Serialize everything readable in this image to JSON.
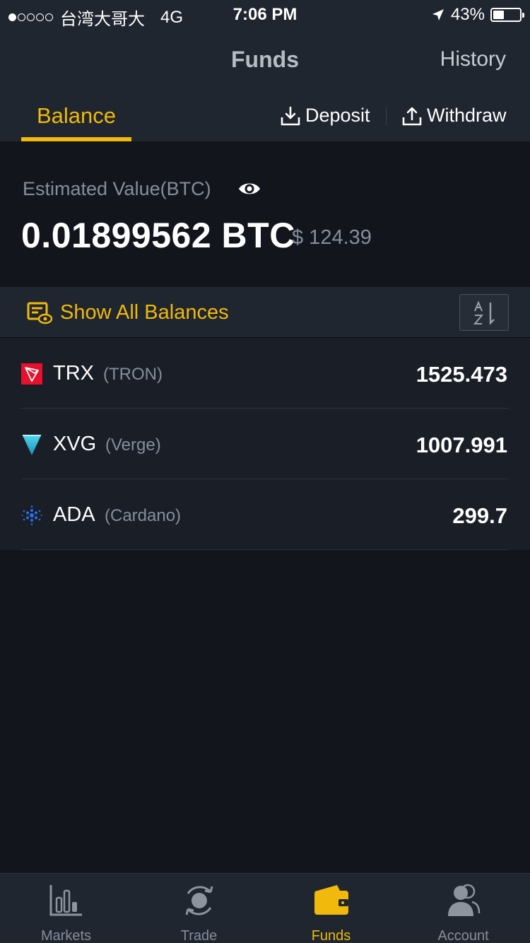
{
  "status_bar": {
    "carrier": "台湾大哥大",
    "network": "4G",
    "time": "7:06 PM",
    "battery": "43%",
    "battery_level": 0.43,
    "signal_bars_filled": 1,
    "signal_bars_total": 5
  },
  "header": {
    "title": "Funds",
    "history_label": "History"
  },
  "tabs": {
    "balance_label": "Balance",
    "deposit_label": "Deposit",
    "withdraw_label": "Withdraw"
  },
  "summary": {
    "estimated_label": "Estimated Value(BTC)",
    "btc_value": "0.01899562 BTC",
    "usd_value": "$ 124.39"
  },
  "balances": {
    "show_all_label": "Show All Balances"
  },
  "assets": [
    {
      "symbol": "TRX",
      "name": "(TRON)",
      "amount": "1525.473",
      "icon": "tron-icon"
    },
    {
      "symbol": "XVG",
      "name": "(Verge)",
      "amount": "1007.991",
      "icon": "verge-icon"
    },
    {
      "symbol": "ADA",
      "name": "(Cardano)",
      "amount": "299.7",
      "icon": "cardano-icon"
    }
  ],
  "bottom_nav": {
    "markets": "Markets",
    "trade": "Trade",
    "funds": "Funds",
    "account": "Account"
  },
  "colors": {
    "accent": "#f0b90b",
    "background": "#12161c",
    "surface": "#1f262f",
    "muted_text": "#848e9c"
  }
}
